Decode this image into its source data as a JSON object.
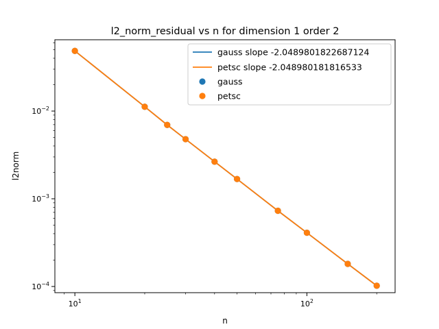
{
  "chart_data": {
    "type": "scatter",
    "title": "l2_norm_residual vs n for dimension 1 order 2",
    "xlabel": "n",
    "ylabel": "l2norm",
    "xscale": "log",
    "yscale": "log",
    "xlim": [
      8.2,
      240
    ],
    "ylim": [
      8.5e-05,
      0.065
    ],
    "grid": false,
    "legend_position": "top-right",
    "x_ticks": [
      {
        "value": 10,
        "base": "10",
        "exp": "1"
      },
      {
        "value": 100,
        "base": "10",
        "exp": "2"
      }
    ],
    "y_ticks": [
      {
        "value": 0.0001,
        "base": "10",
        "exp": "−4"
      },
      {
        "value": 0.001,
        "base": "10",
        "exp": "−3"
      },
      {
        "value": 0.01,
        "base": "10",
        "exp": "−2"
      }
    ],
    "x": [
      10,
      20,
      25,
      30,
      40,
      50,
      75,
      100,
      150,
      200
    ],
    "series": [
      {
        "name": "gauss",
        "kind": "scatter",
        "color": "#1f77b4",
        "values": [
          0.0485,
          0.0112,
          0.00695,
          0.00478,
          0.00265,
          0.00168,
          0.00073,
          0.00041,
          0.000181,
          0.000102
        ]
      },
      {
        "name": "petsc",
        "kind": "scatter",
        "color": "#ff7f0e",
        "values": [
          0.0485,
          0.0112,
          0.00695,
          0.00478,
          0.00265,
          0.00168,
          0.00073,
          0.00041,
          0.000181,
          0.000102
        ]
      }
    ],
    "fit_lines": [
      {
        "name": "gauss slope -2.0489801822687124",
        "kind": "line",
        "color": "#1f77b4"
      },
      {
        "name": "petsc slope -2.048980181816533",
        "kind": "line",
        "color": "#ff7f0e"
      }
    ]
  }
}
